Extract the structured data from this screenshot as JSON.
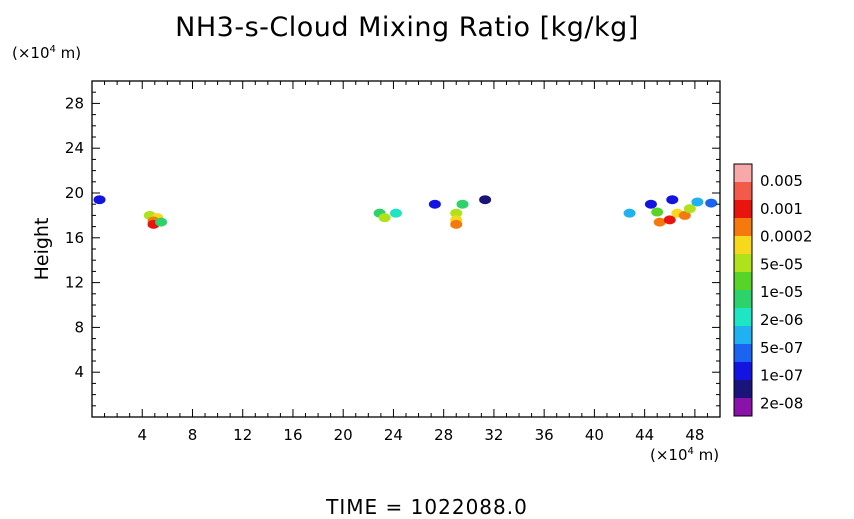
{
  "chart_data": {
    "type": "heatmap",
    "title": "NH3-s-Cloud Mixing Ratio [kg/kg]",
    "ylabel": "Height",
    "x_units_prefix": "(×10",
    "x_units_exp": "4",
    "x_units_suffix": " m)",
    "y_units_prefix": "(×10",
    "y_units_exp": "4",
    "y_units_suffix": " m)",
    "xlim": [
      0,
      50
    ],
    "ylim": [
      0,
      30
    ],
    "xticks": [
      "4",
      "8",
      "12",
      "16",
      "20",
      "24",
      "28",
      "32",
      "36",
      "40",
      "44",
      "48"
    ],
    "yticks": [
      "4",
      "8",
      "12",
      "16",
      "20",
      "24",
      "28"
    ],
    "colorbar": {
      "labels": [
        "0.005",
        "0.001",
        "0.0002",
        "5e-05",
        "1e-05",
        "2e-06",
        "5e-07",
        "1e-07",
        "2e-08"
      ],
      "colors": [
        "#f7a8a8",
        "#f25a4a",
        "#e8140e",
        "#f57a0e",
        "#f7d81c",
        "#b0e21c",
        "#58d428",
        "#2ed26a",
        "#1ee6c4",
        "#20b2f0",
        "#1a64f0",
        "#1414e0",
        "#1a147a",
        "#8a12a8"
      ]
    },
    "cells": [
      {
        "x": 0.6,
        "y": 19.4,
        "c": "#1414e0"
      },
      {
        "x": 4.6,
        "y": 18.0,
        "c": "#b0e21c"
      },
      {
        "x": 5.2,
        "y": 17.8,
        "c": "#f7d81c"
      },
      {
        "x": 4.9,
        "y": 17.5,
        "c": "#f57a0e"
      },
      {
        "x": 4.9,
        "y": 17.2,
        "c": "#e8140e"
      },
      {
        "x": 5.5,
        "y": 17.4,
        "c": "#2ed26a"
      },
      {
        "x": 22.9,
        "y": 18.2,
        "c": "#2ed26a"
      },
      {
        "x": 23.3,
        "y": 17.8,
        "c": "#b0e21c"
      },
      {
        "x": 24.2,
        "y": 18.2,
        "c": "#1ee6c4"
      },
      {
        "x": 27.3,
        "y": 19.0,
        "c": "#1414e0"
      },
      {
        "x": 29.5,
        "y": 19.0,
        "c": "#2ed26a"
      },
      {
        "x": 29.0,
        "y": 18.2,
        "c": "#b0e21c"
      },
      {
        "x": 29.0,
        "y": 17.6,
        "c": "#f7d81c"
      },
      {
        "x": 29.0,
        "y": 17.2,
        "c": "#f57a0e"
      },
      {
        "x": 31.3,
        "y": 19.4,
        "c": "#1a147a"
      },
      {
        "x": 42.8,
        "y": 18.2,
        "c": "#20b2f0"
      },
      {
        "x": 44.5,
        "y": 19.0,
        "c": "#1414e0"
      },
      {
        "x": 45.0,
        "y": 18.3,
        "c": "#58d428"
      },
      {
        "x": 45.2,
        "y": 17.4,
        "c": "#f57a0e"
      },
      {
        "x": 46.0,
        "y": 17.6,
        "c": "#e8140e"
      },
      {
        "x": 46.6,
        "y": 18.2,
        "c": "#f7d81c"
      },
      {
        "x": 47.2,
        "y": 18.0,
        "c": "#f57a0e"
      },
      {
        "x": 47.6,
        "y": 18.6,
        "c": "#b0e21c"
      },
      {
        "x": 48.2,
        "y": 19.2,
        "c": "#20b2f0"
      },
      {
        "x": 49.3,
        "y": 19.1,
        "c": "#1a64f0"
      },
      {
        "x": 46.2,
        "y": 19.4,
        "c": "#1414e0"
      }
    ]
  },
  "footer": {
    "time_label": "TIME",
    "time_sep": " = ",
    "time_value": "1022088.0"
  }
}
